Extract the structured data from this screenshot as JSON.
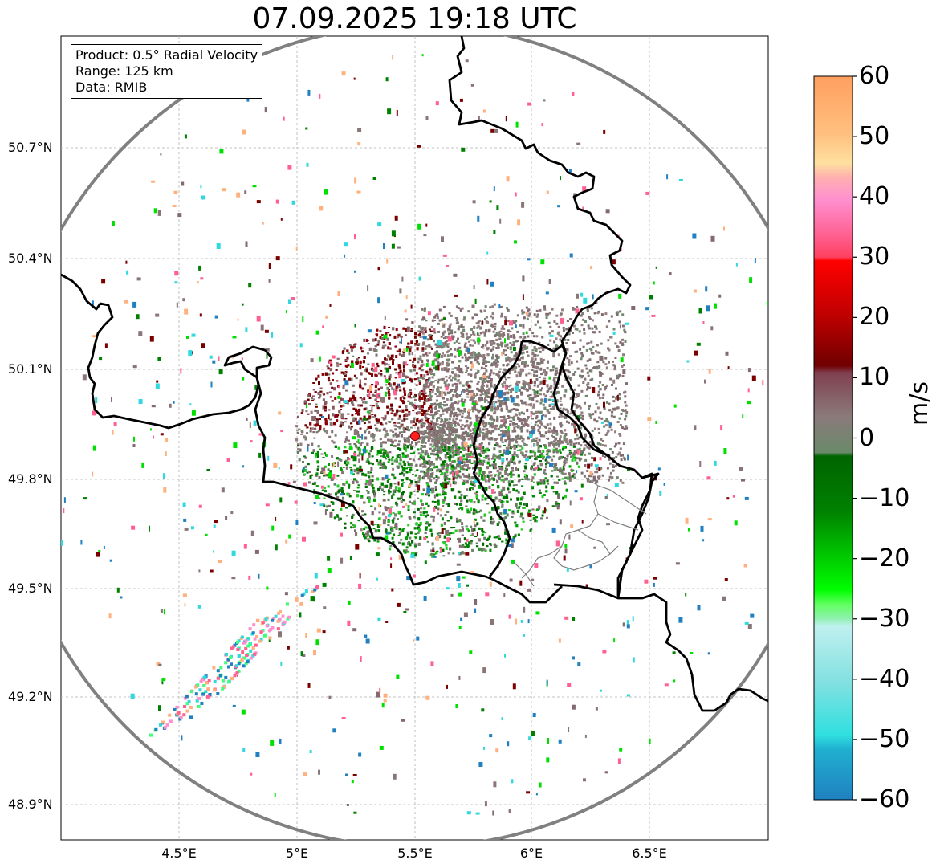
{
  "title": "07.09.2025 19:18 UTC",
  "info": {
    "product": "Product: 0.5° Radial Velocity",
    "range": "Range: 125 km",
    "data": "Data: RMIB"
  },
  "lat_ticks": [
    "50.7°N",
    "50.4°N",
    "50.1°N",
    "49.8°N",
    "49.5°N",
    "49.2°N",
    "48.9°N"
  ],
  "lon_ticks": [
    "4.5°E",
    "5°E",
    "5.5°E",
    "6°E",
    "6.5°E"
  ],
  "colorbar": {
    "unit": "m/s",
    "min": -60,
    "max": 60,
    "ticks": [
      "60",
      "50",
      "40",
      "30",
      "20",
      "10",
      "0",
      "−10",
      "−20",
      "−30",
      "−40",
      "−50",
      "−60"
    ]
  },
  "radar_site": {
    "lon": 5.5,
    "lat": 49.91,
    "color": "#ff2020"
  },
  "colors": {
    "range_ring": "#808080",
    "border": "#000000",
    "approaching": "#008000",
    "receding": "#800000",
    "near_zero": "#8a7a7a"
  }
}
